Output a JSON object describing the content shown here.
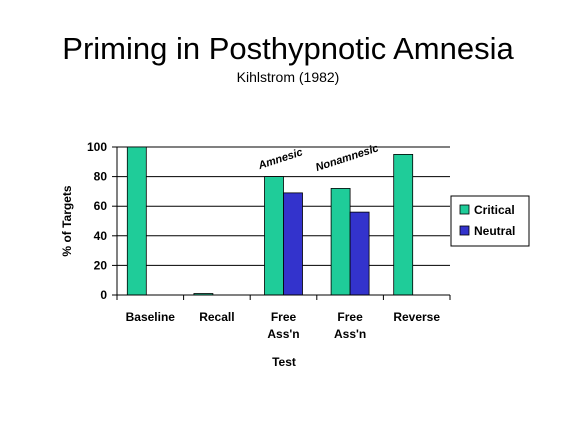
{
  "colors": {
    "critical": "#1fcc99",
    "neutral": "#3333cc",
    "grid": "#000000"
  },
  "chart_data": {
    "type": "bar",
    "title": "Priming in Posthypnotic Amnesia",
    "subtitle": "Kihlstrom (1982)",
    "xlabel": "Test",
    "ylabel": "% of Targets",
    "ylim": [
      0,
      100
    ],
    "yticks": [
      0,
      20,
      40,
      60,
      80,
      100
    ],
    "grid": true,
    "legend_position": "right",
    "categories": [
      [
        "Baseline"
      ],
      [
        "Recall"
      ],
      [
        "Free",
        "Ass'n"
      ],
      [
        "Free",
        "Ass'n"
      ],
      [
        "Reverse"
      ]
    ],
    "series": [
      {
        "name": "Critical",
        "values": [
          100,
          1,
          80,
          72,
          95
        ]
      },
      {
        "name": "Neutral",
        "values": [
          null,
          null,
          69,
          56,
          null
        ]
      }
    ],
    "annotations": [
      {
        "text": "Amnesic",
        "category_index": 2
      },
      {
        "text": "Nonamnesic",
        "category_index": 3
      }
    ]
  }
}
